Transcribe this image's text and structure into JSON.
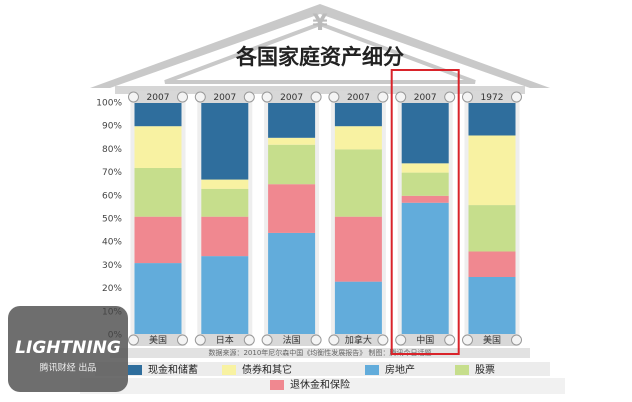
{
  "chart_data": {
    "type": "stacked_bar_100",
    "symbol": "¥",
    "title": "各国家庭资产细分",
    "categories": [
      "美国",
      "日本",
      "法国",
      "加拿大",
      "中国",
      "美国"
    ],
    "years": [
      "2007",
      "2007",
      "2007",
      "2007",
      "2007",
      "1972"
    ],
    "series": [
      {
        "name": "房地产",
        "color": "#62acdb",
        "values": [
          31,
          34,
          44,
          23,
          57,
          25
        ]
      },
      {
        "name": "退休金和保险",
        "color": "#f08890",
        "values": [
          20,
          17,
          21,
          28,
          3,
          11
        ]
      },
      {
        "name": "股票",
        "color": "#c6de8c",
        "values": [
          21,
          12,
          17,
          29,
          10,
          20
        ]
      },
      {
        "name": "债券和其它",
        "color": "#f8f2a2",
        "values": [
          18,
          4,
          3,
          10,
          4,
          30
        ]
      },
      {
        "name": "现金和储蓄",
        "color": "#2f6e9d",
        "values": [
          10,
          34,
          15,
          10,
          26,
          14
        ]
      }
    ],
    "legend_order": [
      4,
      3,
      0,
      2,
      1
    ],
    "ylim": [
      0,
      100
    ],
    "yticks": [
      {
        "value": 0,
        "label": "0%"
      },
      {
        "value": 10,
        "label": "10%"
      },
      {
        "value": 20,
        "label": "20%"
      },
      {
        "value": 30,
        "label": "30%"
      },
      {
        "value": 40,
        "label": "40%"
      },
      {
        "value": 50,
        "label": "50%"
      },
      {
        "value": 60,
        "label": "60%"
      },
      {
        "value": 70,
        "label": "70%"
      },
      {
        "value": 80,
        "label": "80%"
      },
      {
        "value": 90,
        "label": "90%"
      },
      {
        "value": 100,
        "label": "100%"
      }
    ],
    "highlight": 4,
    "source": "数据来源：2010年尼尔森中国《均衡性发展报告》 制图：腾讯今日话题",
    "watermark": {
      "brand": "LIGHTNING",
      "subtitle": "腾讯财经 出品"
    }
  }
}
